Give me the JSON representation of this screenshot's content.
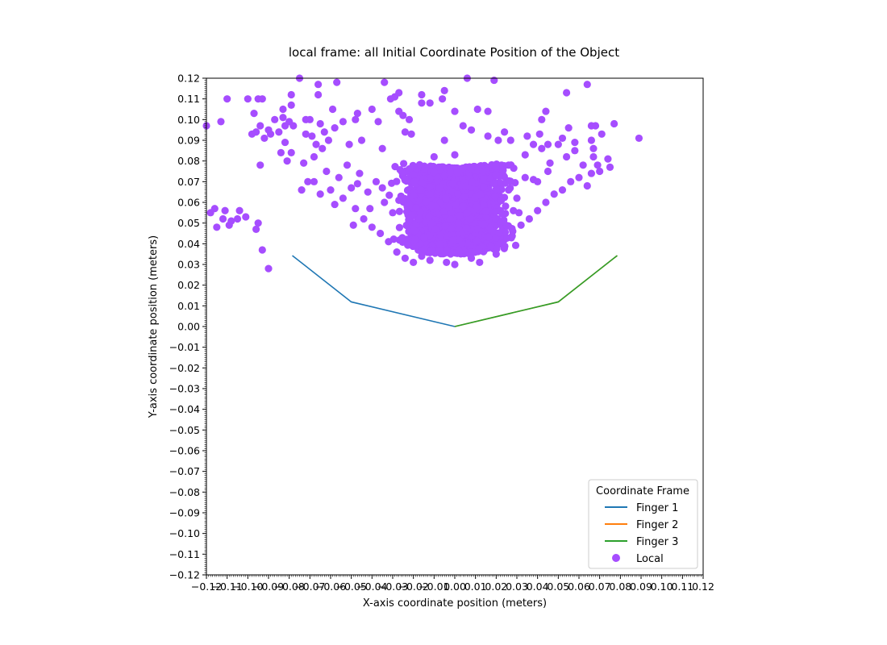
{
  "chart_data": {
    "type": "scatter",
    "title": "local frame: all Initial Coordinate Position of the Object",
    "xlabel": "X-axis coordinate position (meters)",
    "ylabel": "Y-axis coordinate position (meters)",
    "xlim": [
      -0.12,
      0.12
    ],
    "ylim": [
      -0.12,
      0.12
    ],
    "xticks": [
      "−0.12",
      "−0.11",
      "−0.10",
      "−0.09",
      "−0.08",
      "−0.07",
      "−0.06",
      "−0.05",
      "−0.04",
      "−0.03",
      "−0.02",
      "−0.01",
      "0.00",
      "0.01",
      "0.02",
      "0.03",
      "0.04",
      "0.05",
      "0.06",
      "0.07",
      "0.08",
      "0.09",
      "0.10",
      "0.11",
      "0.12"
    ],
    "yticks": [
      "0.12",
      "0.11",
      "0.10",
      "0.09",
      "0.08",
      "0.07",
      "0.06",
      "0.05",
      "0.04",
      "0.03",
      "0.02",
      "0.01",
      "0.00",
      "−0.01",
      "−0.02",
      "−0.03",
      "−0.04",
      "−0.05",
      "−0.06",
      "−0.07",
      "−0.08",
      "−0.09",
      "−0.10",
      "−0.11",
      "−0.12"
    ],
    "grid": false,
    "legend": {
      "title": "Coordinate Frame",
      "placement": "lower-right",
      "entries": [
        "Finger 1",
        "Finger 2",
        "Finger 3",
        "Local"
      ]
    },
    "series": [
      {
        "name": "Finger 1",
        "kind": "line",
        "color": "#1f77b4",
        "points": [
          [
            -0.0785,
            0.0343
          ],
          [
            -0.05,
            0.0119
          ],
          [
            0.0,
            0.0
          ]
        ]
      },
      {
        "name": "Finger 2",
        "kind": "line",
        "color": "#ff7f0e",
        "points": [
          [
            0.0,
            0.0
          ],
          [
            0.05,
            0.0119
          ],
          [
            0.0785,
            0.0343
          ]
        ]
      },
      {
        "name": "Finger 3",
        "kind": "line",
        "color": "#2ca02c",
        "points": [
          [
            0.0,
            0.0
          ],
          [
            0.05,
            0.0119
          ],
          [
            0.0785,
            0.0343
          ]
        ]
      },
      {
        "name": "Local",
        "kind": "scatter",
        "color": "#a64dff",
        "points": [
          [
            -0.12,
            0.097
          ],
          [
            -0.118,
            0.055
          ],
          [
            -0.116,
            0.057
          ],
          [
            -0.115,
            0.048
          ],
          [
            -0.113,
            0.099
          ],
          [
            -0.112,
            0.052
          ],
          [
            -0.111,
            0.056
          ],
          [
            -0.11,
            0.11
          ],
          [
            -0.109,
            0.049
          ],
          [
            -0.108,
            0.051
          ],
          [
            -0.105,
            0.052
          ],
          [
            -0.104,
            0.056
          ],
          [
            -0.101,
            0.053
          ],
          [
            -0.1,
            0.11
          ],
          [
            -0.098,
            0.093
          ],
          [
            -0.097,
            0.103
          ],
          [
            -0.096,
            0.094
          ],
          [
            -0.096,
            0.047
          ],
          [
            -0.095,
            0.05
          ],
          [
            -0.095,
            0.11
          ],
          [
            -0.094,
            0.078
          ],
          [
            -0.094,
            0.097
          ],
          [
            -0.093,
            0.11
          ],
          [
            -0.092,
            0.091
          ],
          [
            -0.093,
            0.037
          ],
          [
            -0.09,
            0.028
          ],
          [
            -0.09,
            0.095
          ],
          [
            -0.089,
            0.093
          ],
          [
            -0.087,
            0.1
          ],
          [
            -0.085,
            0.094
          ],
          [
            -0.084,
            0.084
          ],
          [
            -0.083,
            0.101
          ],
          [
            -0.083,
            0.105
          ],
          [
            -0.082,
            0.097
          ],
          [
            -0.082,
            0.089
          ],
          [
            -0.081,
            0.08
          ],
          [
            -0.08,
            0.099
          ],
          [
            -0.079,
            0.112
          ],
          [
            -0.079,
            0.107
          ],
          [
            -0.079,
            0.084
          ],
          [
            -0.078,
            0.097
          ],
          [
            -0.075,
            0.12
          ],
          [
            -0.074,
            0.066
          ],
          [
            -0.073,
            0.079
          ],
          [
            -0.072,
            0.093
          ],
          [
            -0.072,
            0.1
          ],
          [
            -0.071,
            0.07
          ],
          [
            -0.07,
            0.1
          ],
          [
            -0.069,
            0.092
          ],
          [
            -0.068,
            0.082
          ],
          [
            -0.067,
            0.088
          ],
          [
            -0.066,
            0.117
          ],
          [
            -0.066,
            0.112
          ],
          [
            -0.065,
            0.098
          ],
          [
            -0.064,
            0.086
          ],
          [
            -0.063,
            0.094
          ],
          [
            -0.061,
            0.09
          ],
          [
            -0.059,
            0.105
          ],
          [
            -0.058,
            0.096
          ],
          [
            -0.057,
            0.118
          ],
          [
            -0.054,
            0.099
          ],
          [
            -0.051,
            0.088
          ],
          [
            -0.049,
            0.049
          ],
          [
            -0.048,
            0.1
          ],
          [
            -0.047,
            0.103
          ],
          [
            -0.045,
            0.09
          ],
          [
            -0.04,
            0.105
          ],
          [
            -0.037,
            0.099
          ],
          [
            -0.035,
            0.086
          ],
          [
            -0.034,
            0.118
          ],
          [
            -0.031,
            0.11
          ],
          [
            -0.029,
            0.111
          ],
          [
            -0.027,
            0.104
          ],
          [
            -0.027,
            0.113
          ],
          [
            -0.025,
            0.102
          ],
          [
            -0.024,
            0.094
          ],
          [
            -0.022,
            0.1
          ],
          [
            -0.021,
            0.093
          ],
          [
            -0.016,
            0.108
          ],
          [
            -0.016,
            0.112
          ],
          [
            -0.012,
            0.108
          ],
          [
            -0.01,
            0.082
          ],
          [
            -0.009,
            0.072
          ],
          [
            -0.006,
            0.11
          ],
          [
            -0.005,
            0.114
          ],
          [
            -0.005,
            0.09
          ],
          [
            0.0,
            0.104
          ],
          [
            0.0,
            0.083
          ],
          [
            0.004,
            0.097
          ],
          [
            0.006,
            0.12
          ],
          [
            0.008,
            0.095
          ],
          [
            0.011,
            0.105
          ],
          [
            0.016,
            0.104
          ],
          [
            0.016,
            0.092
          ],
          [
            0.019,
            0.119
          ],
          [
            0.021,
            0.09
          ],
          [
            0.024,
            0.094
          ],
          [
            0.027,
            0.09
          ],
          [
            0.035,
            0.092
          ],
          [
            0.038,
            0.088
          ],
          [
            0.041,
            0.093
          ],
          [
            0.042,
            0.1
          ],
          [
            0.044,
            0.104
          ],
          [
            0.045,
            0.088
          ],
          [
            0.052,
            0.091
          ],
          [
            0.054,
            0.113
          ],
          [
            0.055,
            0.096
          ],
          [
            0.058,
            0.089
          ],
          [
            0.064,
            0.117
          ],
          [
            0.066,
            0.097
          ],
          [
            0.066,
            0.09
          ],
          [
            0.067,
            0.086
          ],
          [
            0.067,
            0.082
          ],
          [
            0.068,
            0.097
          ],
          [
            0.069,
            0.078
          ],
          [
            0.07,
            0.075
          ],
          [
            0.071,
            0.093
          ],
          [
            0.074,
            0.081
          ],
          [
            0.075,
            0.077
          ],
          [
            0.077,
            0.098
          ],
          [
            0.089,
            0.091
          ],
          [
            -0.068,
            0.07
          ],
          [
            -0.065,
            0.064
          ],
          [
            -0.062,
            0.075
          ],
          [
            -0.06,
            0.066
          ],
          [
            -0.058,
            0.059
          ],
          [
            -0.056,
            0.072
          ],
          [
            -0.054,
            0.062
          ],
          [
            -0.052,
            0.078
          ],
          [
            -0.05,
            0.067
          ],
          [
            -0.048,
            0.057
          ],
          [
            -0.046,
            0.074
          ],
          [
            -0.044,
            0.052
          ],
          [
            -0.042,
            0.065
          ],
          [
            -0.04,
            0.048
          ],
          [
            -0.038,
            0.07
          ],
          [
            -0.036,
            0.045
          ],
          [
            -0.034,
            0.06
          ],
          [
            -0.032,
            0.041
          ],
          [
            -0.03,
            0.055
          ],
          [
            -0.028,
            0.036
          ],
          [
            -0.026,
            0.063
          ],
          [
            -0.024,
            0.033
          ],
          [
            -0.022,
            0.05
          ],
          [
            -0.02,
            0.031
          ],
          [
            -0.018,
            0.058
          ],
          [
            -0.016,
            0.034
          ],
          [
            -0.014,
            0.045
          ],
          [
            -0.012,
            0.032
          ],
          [
            -0.01,
            0.053
          ],
          [
            -0.008,
            0.038
          ],
          [
            -0.006,
            0.066
          ],
          [
            -0.004,
            0.031
          ],
          [
            -0.002,
            0.048
          ],
          [
            0.0,
            0.03
          ],
          [
            0.002,
            0.06
          ],
          [
            0.004,
            0.036
          ],
          [
            0.006,
            0.07
          ],
          [
            0.008,
            0.033
          ],
          [
            0.01,
            0.052
          ],
          [
            0.012,
            0.031
          ],
          [
            0.014,
            0.067
          ],
          [
            0.016,
            0.038
          ],
          [
            0.018,
            0.074
          ],
          [
            0.02,
            0.035
          ],
          [
            0.022,
            0.056
          ],
          [
            0.024,
            0.042
          ],
          [
            0.026,
            0.078
          ],
          [
            0.028,
            0.046
          ],
          [
            0.03,
            0.062
          ],
          [
            0.032,
            0.049
          ],
          [
            0.034,
            0.083
          ],
          [
            0.036,
            0.052
          ],
          [
            0.038,
            0.071
          ],
          [
            0.04,
            0.056
          ],
          [
            0.042,
            0.086
          ],
          [
            0.044,
            0.06
          ],
          [
            0.046,
            0.079
          ],
          [
            0.048,
            0.064
          ],
          [
            0.05,
            0.088
          ],
          [
            0.052,
            0.066
          ],
          [
            0.054,
            0.082
          ],
          [
            0.056,
            0.07
          ],
          [
            0.058,
            0.085
          ],
          [
            0.06,
            0.072
          ],
          [
            0.062,
            0.078
          ],
          [
            0.064,
            0.068
          ],
          [
            0.066,
            0.074
          ],
          [
            -0.003,
            0.04
          ],
          [
            0.012,
            0.046
          ],
          [
            -0.015,
            0.055
          ],
          [
            0.021,
            0.06
          ],
          [
            0.005,
            0.058
          ],
          [
            -0.009,
            0.064
          ],
          [
            0.017,
            0.05
          ],
          [
            -0.021,
            0.044
          ],
          [
            0.026,
            0.066
          ],
          [
            -0.027,
            0.061
          ],
          [
            0.009,
            0.042
          ],
          [
            0.034,
            0.072
          ],
          [
            -0.035,
            0.067
          ],
          [
            0.0,
            0.05
          ],
          [
            0.015,
            0.075
          ],
          [
            -0.012,
            0.071
          ],
          [
            0.04,
            0.07
          ],
          [
            -0.041,
            0.057
          ],
          [
            0.007,
            0.068
          ],
          [
            0.023,
            0.048
          ],
          [
            -0.018,
            0.069
          ],
          [
            0.031,
            0.055
          ],
          [
            -0.006,
            0.077
          ],
          [
            0.045,
            0.075
          ],
          [
            -0.047,
            0.069
          ]
        ]
      }
    ]
  }
}
